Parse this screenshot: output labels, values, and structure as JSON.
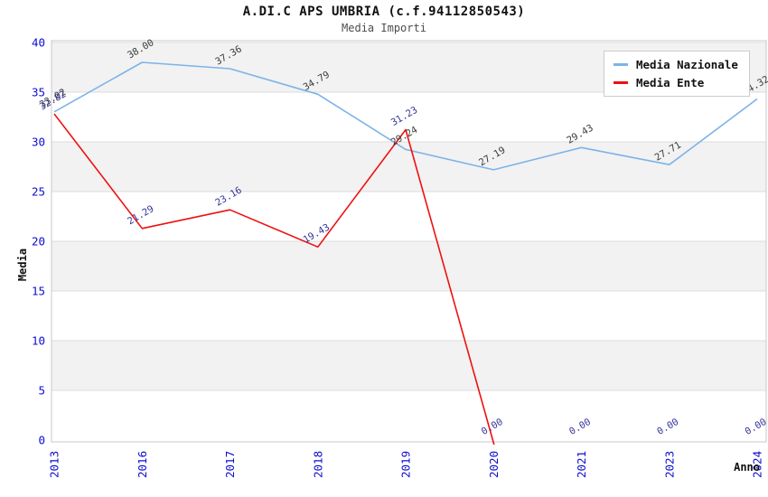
{
  "header": {
    "title": "A.DI.C APS UMBRIA (c.f.94112850543)",
    "subtitle": "Media Importi"
  },
  "chart_data": {
    "type": "line",
    "title": "A.DI.C APS UMBRIA (c.f.94112850543)",
    "subtitle": "Media Importi",
    "xlabel": "Anno",
    "ylabel": "Media",
    "categories": [
      "2013",
      "2016",
      "2017",
      "2018",
      "2019",
      "2020",
      "2021",
      "2023",
      "2024"
    ],
    "yticks": [
      0,
      5,
      10,
      15,
      20,
      25,
      30,
      35,
      40
    ],
    "ylim": [
      0,
      40.2
    ],
    "grid": "horizontal gridlines every 5 units with alternating gray bands",
    "legend_position": "top-right",
    "series": [
      {
        "name": "Media Nazionale",
        "color": "#7db3e8",
        "label_color": "#3a3a3a",
        "values": [
          33.02,
          38.0,
          37.36,
          34.79,
          29.24,
          27.19,
          29.43,
          27.71,
          34.32
        ]
      },
      {
        "name": "Media Ente",
        "color": "#ee1111",
        "label_color": "#333399",
        "values": [
          32.82,
          21.29,
          23.16,
          19.43,
          31.23,
          0.0,
          0.0,
          0.0,
          0.0
        ]
      }
    ]
  },
  "colors": {
    "tick_label": "#0d0dcf",
    "band_fill": "#f2f2f2",
    "gridline": "#dcdcdc",
    "plot_border": "#c8c8c8",
    "axis_title": "#111111"
  }
}
